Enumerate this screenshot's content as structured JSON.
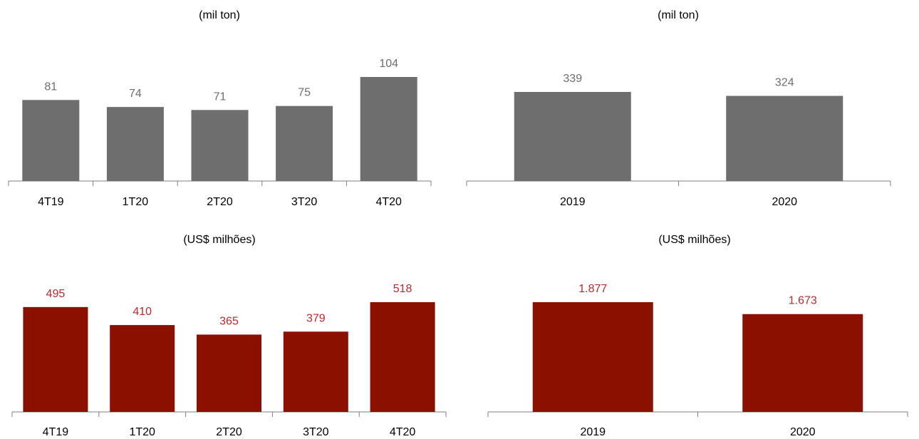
{
  "colors": {
    "gray_bar": "#6e6e6e",
    "gray_label": "#6e6e6e",
    "red_bar": "#8b1000",
    "red_label": "#c0282d"
  },
  "chart_data": [
    {
      "id": "volume-quarterly",
      "type": "bar",
      "title": "(mil ton)",
      "categories": [
        "4T19",
        "1T20",
        "2T20",
        "3T20",
        "4T20"
      ],
      "values": [
        81,
        74,
        71,
        75,
        104
      ],
      "value_labels": [
        "81",
        "74",
        "71",
        "75",
        "104"
      ],
      "ylim": [
        0,
        104
      ],
      "bar_color": "#6e6e6e",
      "label_color": "#6e6e6e",
      "grid": false
    },
    {
      "id": "volume-annual",
      "type": "bar",
      "title": "(mil ton)",
      "categories": [
        "2019",
        "2020"
      ],
      "values": [
        339,
        324
      ],
      "value_labels": [
        "339",
        "324"
      ],
      "ylim": [
        0,
        339
      ],
      "bar_color": "#6e6e6e",
      "label_color": "#6e6e6e",
      "grid": false
    },
    {
      "id": "revenue-quarterly",
      "type": "bar",
      "title": "(US$ milhões)",
      "categories": [
        "4T19",
        "1T20",
        "2T20",
        "3T20",
        "4T20"
      ],
      "values": [
        495,
        410,
        365,
        379,
        518
      ],
      "value_labels": [
        "495",
        "410",
        "365",
        "379",
        "518"
      ],
      "ylim": [
        0,
        518
      ],
      "bar_color": "#8b1000",
      "label_color": "#c0282d",
      "grid": false
    },
    {
      "id": "revenue-annual",
      "type": "bar",
      "title": "(US$ milhões)",
      "categories": [
        "2019",
        "2020"
      ],
      "values": [
        1877,
        1673
      ],
      "value_labels": [
        "1.877",
        "1.673"
      ],
      "ylim": [
        0,
        1877
      ],
      "bar_color": "#8b1000",
      "label_color": "#c0282d",
      "grid": false
    }
  ]
}
